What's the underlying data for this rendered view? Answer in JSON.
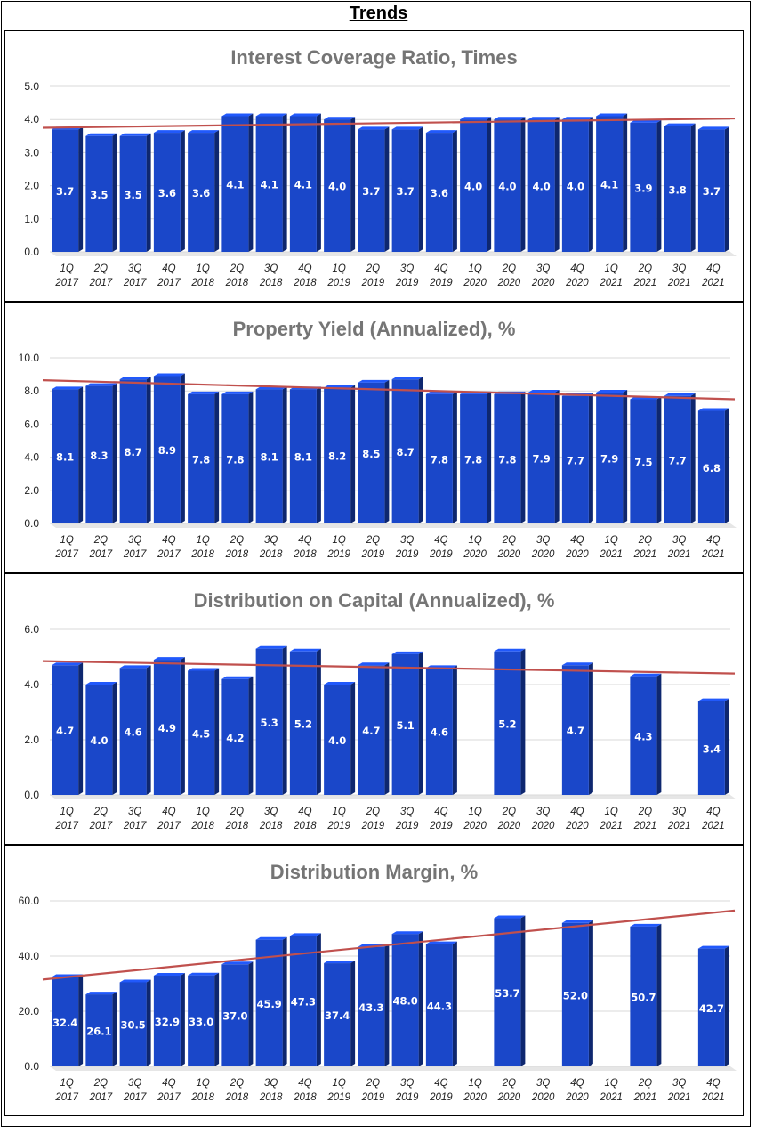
{
  "page_title": "Trends",
  "chart_data": [
    {
      "type": "bar",
      "title": "Interest Coverage Ratio, Times",
      "categories": [
        "1Q 2017",
        "2Q 2017",
        "3Q 2017",
        "4Q 2017",
        "1Q 2018",
        "2Q 2018",
        "3Q 2018",
        "4Q 2018",
        "1Q 2019",
        "2Q 2019",
        "3Q 2019",
        "4Q 2019",
        "1Q 2020",
        "2Q 2020",
        "3Q 2020",
        "4Q 2020",
        "1Q 2021",
        "2Q 2021",
        "3Q 2021",
        "4Q 2021"
      ],
      "values": [
        3.7,
        3.5,
        3.5,
        3.6,
        3.6,
        4.1,
        4.1,
        4.1,
        4.0,
        3.7,
        3.7,
        3.6,
        4.0,
        4.0,
        4.0,
        4.0,
        4.1,
        3.9,
        3.8,
        3.7
      ],
      "labels": [
        "3.7",
        "3.5",
        "3.5",
        "3.6",
        "3.6",
        "4.1",
        "4.1",
        "4.1",
        "4.0",
        "3.7",
        "3.7",
        "3.6",
        "4.0",
        "4.0",
        "4.0",
        "4.0",
        "4.1",
        "3.9",
        "3.8",
        "3.7"
      ],
      "ylim": [
        0,
        5.0
      ],
      "yticks": [
        "0.0",
        "1.0",
        "2.0",
        "3.0",
        "4.0",
        "5.0"
      ],
      "trendline": [
        3.75,
        4.03
      ],
      "grid": true,
      "xlabel": "",
      "ylabel": "",
      "bar_color": "#1a47c9",
      "trend_color": "#c0504d"
    },
    {
      "type": "bar",
      "title": "Property Yield (Annualized), %",
      "categories": [
        "1Q 2017",
        "2Q 2017",
        "3Q 2017",
        "4Q 2017",
        "1Q 2018",
        "2Q 2018",
        "3Q 2018",
        "4Q 2018",
        "1Q 2019",
        "2Q 2019",
        "3Q 2019",
        "4Q 2019",
        "1Q 2020",
        "2Q 2020",
        "3Q 2020",
        "4Q 2020",
        "1Q 2021",
        "2Q 2021",
        "3Q 2021",
        "4Q 2021"
      ],
      "values": [
        8.1,
        8.3,
        8.7,
        8.9,
        7.8,
        7.8,
        8.1,
        8.1,
        8.2,
        8.5,
        8.7,
        7.8,
        7.8,
        7.8,
        7.9,
        7.7,
        7.9,
        7.5,
        7.7,
        6.8
      ],
      "labels": [
        "8.1",
        "8.3",
        "8.7",
        "8.9",
        "7.8",
        "7.8",
        "8.1",
        "8.1",
        "8.2",
        "8.5",
        "8.7",
        "7.8",
        "7.8",
        "7.8",
        "7.9",
        "7.7",
        "7.9",
        "7.5",
        "7.7",
        "6.8"
      ],
      "ylim": [
        0,
        10.0
      ],
      "yticks": [
        "0.0",
        "2.0",
        "4.0",
        "6.0",
        "8.0",
        "10.0"
      ],
      "trendline": [
        8.65,
        7.5
      ],
      "grid": true,
      "xlabel": "",
      "ylabel": "",
      "bar_color": "#1a47c9",
      "trend_color": "#c0504d"
    },
    {
      "type": "bar",
      "title": "Distribution on Capital (Annualized), %",
      "categories": [
        "1Q 2017",
        "2Q 2017",
        "3Q 2017",
        "4Q 2017",
        "1Q 2018",
        "2Q 2018",
        "3Q 2018",
        "4Q 2018",
        "1Q 2019",
        "2Q 2019",
        "3Q 2019",
        "4Q 2019",
        "1Q 2020",
        "2Q 2020",
        "3Q 2020",
        "4Q 2020",
        "1Q 2021",
        "2Q 2021",
        "3Q 2021",
        "4Q 2021"
      ],
      "values": [
        4.7,
        4.0,
        4.6,
        4.9,
        4.5,
        4.2,
        5.3,
        5.2,
        4.0,
        4.7,
        5.1,
        4.6,
        null,
        5.2,
        null,
        4.7,
        null,
        4.3,
        null,
        3.4
      ],
      "labels": [
        "4.7",
        "4.0",
        "4.6",
        "4.9",
        "4.5",
        "4.2",
        "5.3",
        "5.2",
        "4.0",
        "4.7",
        "5.1",
        "4.6",
        "",
        "5.2",
        "",
        "4.7",
        "",
        "4.3",
        "",
        "3.4"
      ],
      "ylim": [
        0,
        6.0
      ],
      "yticks": [
        "0.0",
        "2.0",
        "4.0",
        "6.0"
      ],
      "trendline": [
        4.85,
        4.4
      ],
      "grid": true,
      "xlabel": "",
      "ylabel": "",
      "bar_color": "#1a47c9",
      "trend_color": "#c0504d"
    },
    {
      "type": "bar",
      "title": "Distribution Margin, %",
      "categories": [
        "1Q 2017",
        "2Q 2017",
        "3Q 2017",
        "4Q 2017",
        "1Q 2018",
        "2Q 2018",
        "3Q 2018",
        "4Q 2018",
        "1Q 2019",
        "2Q 2019",
        "3Q 2019",
        "4Q 2019",
        "1Q 2020",
        "2Q 2020",
        "3Q 2020",
        "4Q 2020",
        "1Q 2021",
        "2Q 2021",
        "3Q 2021",
        "4Q 2021"
      ],
      "values": [
        32.4,
        26.1,
        30.5,
        32.9,
        33.0,
        37.0,
        45.9,
        47.3,
        37.4,
        43.3,
        48.0,
        44.3,
        null,
        53.7,
        null,
        52.0,
        null,
        50.7,
        null,
        42.7
      ],
      "labels": [
        "32.4",
        "26.1",
        "30.5",
        "32.9",
        "33.0",
        "37.0",
        "45.9",
        "47.3",
        "37.4",
        "43.3",
        "48.0",
        "44.3",
        "",
        "53.7",
        "",
        "52.0",
        "",
        "50.7",
        "",
        "42.7"
      ],
      "ylim": [
        0,
        60.0
      ],
      "yticks": [
        "0.0",
        "20.0",
        "40.0",
        "60.0"
      ],
      "trendline": [
        31.5,
        56.5
      ],
      "grid": true,
      "xlabel": "",
      "ylabel": "",
      "bar_color": "#1a47c9",
      "trend_color": "#c0504d"
    }
  ]
}
